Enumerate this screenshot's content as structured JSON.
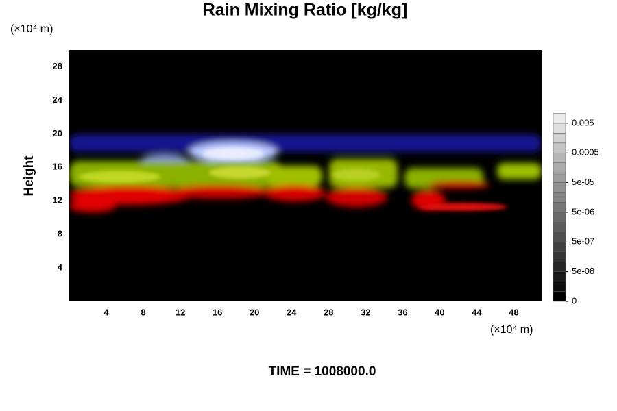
{
  "chart_data": {
    "type": "volume",
    "title": "Rain Mixing Ratio [kg/kg]",
    "ylabel": "Height",
    "yunit": "(×10⁴ m)",
    "xunit": "(×10⁴ m)",
    "footer": "TIME = 1008000.0",
    "xlim": [
      0,
      51
    ],
    "xticks": [
      4,
      8,
      12,
      16,
      20,
      24,
      28,
      32,
      36,
      40,
      44,
      48
    ],
    "ylim": [
      0,
      30
    ],
    "yticks": [
      4,
      8,
      12,
      16,
      20,
      24,
      28
    ],
    "colorbar_ticks": [
      0,
      {
        "value": 5e-08,
        "label": "5e-08"
      },
      {
        "value": 5e-07,
        "label": "5e-07"
      },
      {
        "value": 5e-06,
        "label": "5e-06"
      },
      {
        "value": 5e-05,
        "label": "5e-05"
      },
      0.0005,
      0.005
    ]
  }
}
